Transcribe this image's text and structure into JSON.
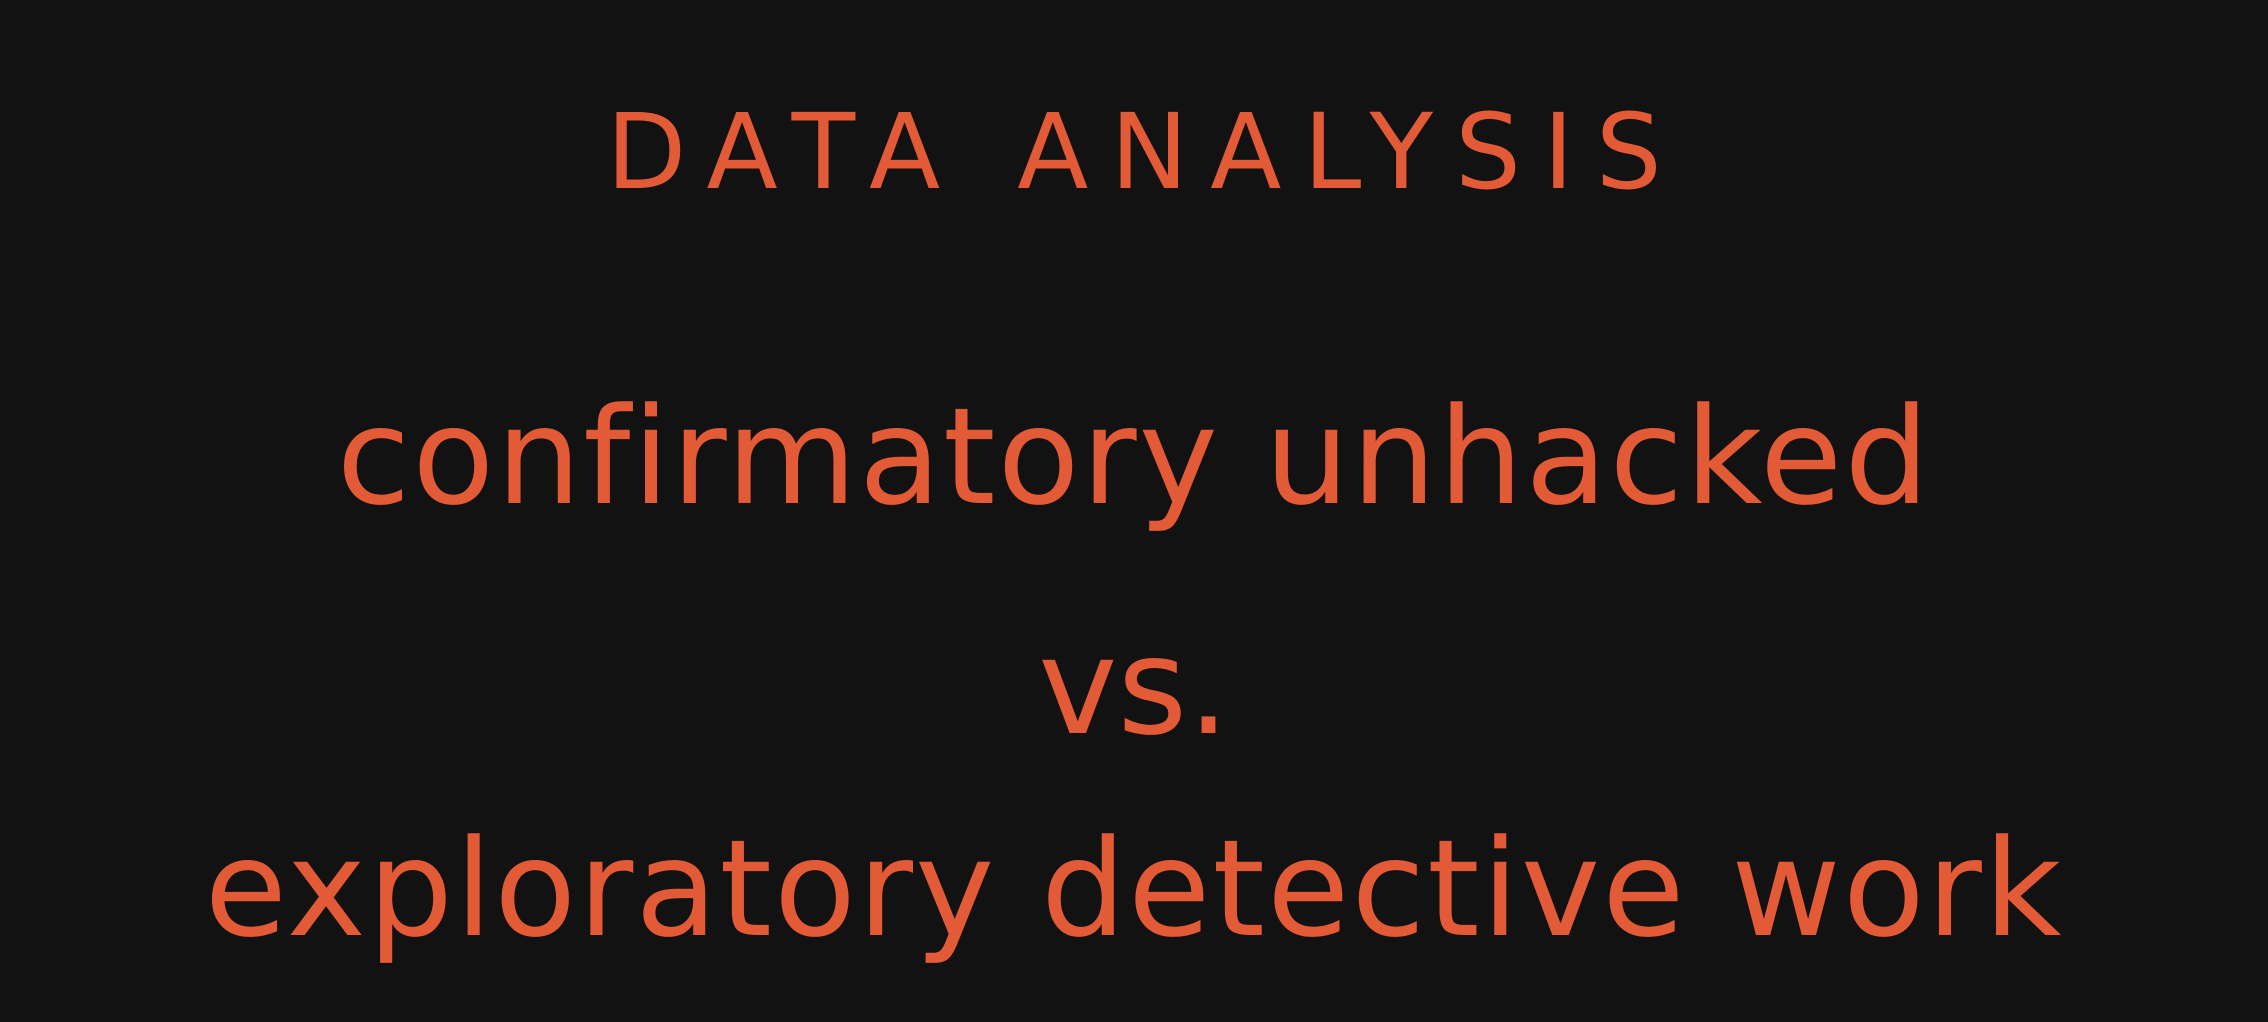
{
  "slide": {
    "heading": "DATA ANALYSIS",
    "line_1": "confirmatory unhacked",
    "line_2": "vs.",
    "line_3": "exploratory detective work"
  },
  "colors": {
    "background": "#121212",
    "text": "#e35a36"
  }
}
